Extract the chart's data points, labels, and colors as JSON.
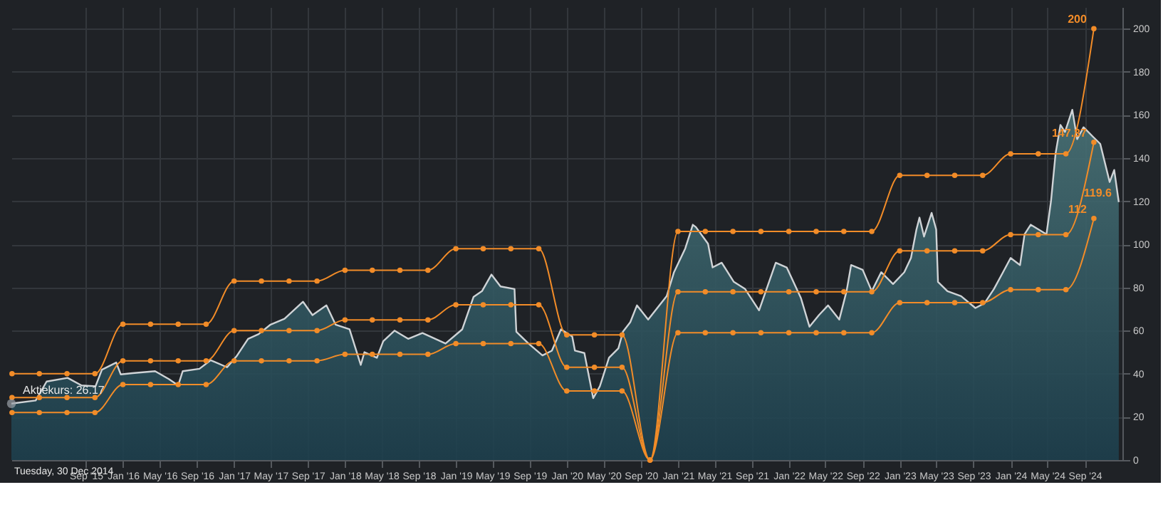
{
  "chart_data": {
    "type": "line",
    "xlim": [
      "2014-12-30",
      "2025-01-03"
    ],
    "xticks": [
      {
        "value": "2015-09-01",
        "label": "Sep '15"
      },
      {
        "value": "2016-01-01",
        "label": "Jan '16"
      },
      {
        "value": "2016-05-01",
        "label": "May '16"
      },
      {
        "value": "2016-09-01",
        "label": "Sep '16"
      },
      {
        "value": "2017-01-01",
        "label": "Jan '17"
      },
      {
        "value": "2017-05-01",
        "label": "May '17"
      },
      {
        "value": "2017-09-01",
        "label": "Sep '17"
      },
      {
        "value": "2018-01-01",
        "label": "Jan '18"
      },
      {
        "value": "2018-05-01",
        "label": "May '18"
      },
      {
        "value": "2018-09-01",
        "label": "Sep '18"
      },
      {
        "value": "2019-01-01",
        "label": "Jan '19"
      },
      {
        "value": "2019-05-01",
        "label": "May '19"
      },
      {
        "value": "2019-09-01",
        "label": "Sep '19"
      },
      {
        "value": "2020-01-01",
        "label": "Jan '20"
      },
      {
        "value": "2020-05-01",
        "label": "May '20"
      },
      {
        "value": "2020-09-01",
        "label": "Sep '20"
      },
      {
        "value": "2021-01-01",
        "label": "Jan '21"
      },
      {
        "value": "2021-05-01",
        "label": "May '21"
      },
      {
        "value": "2021-09-01",
        "label": "Sep '21"
      },
      {
        "value": "2022-01-01",
        "label": "Jan '22"
      },
      {
        "value": "2022-05-01",
        "label": "May '22"
      },
      {
        "value": "2022-09-01",
        "label": "Sep '22"
      },
      {
        "value": "2023-01-01",
        "label": "Jan '23"
      },
      {
        "value": "2023-05-01",
        "label": "May '23"
      },
      {
        "value": "2023-09-01",
        "label": "Sep '23"
      },
      {
        "value": "2024-01-01",
        "label": "Jan '24"
      },
      {
        "value": "2024-05-01",
        "label": "May '24"
      },
      {
        "value": "2024-09-01",
        "label": "Sep '24"
      }
    ],
    "ylim": [
      0,
      210
    ],
    "yticks": [
      0,
      20,
      40,
      60,
      80,
      100,
      120,
      140,
      160,
      180,
      200
    ],
    "grid": true,
    "series": [
      {
        "type": "area",
        "color": "#cfd3d6",
        "x": [
          "2014-12-30",
          "2015-03-20",
          "2015-04-25",
          "2015-07-03",
          "2015-08-18",
          "2015-10-03",
          "2015-10-24",
          "2015-12-10",
          "2015-12-25",
          "2016-02-02",
          "2016-04-16",
          "2016-06-01",
          "2016-07-01",
          "2016-07-16",
          "2016-09-09",
          "2016-10-16",
          "2016-12-09",
          "2017-01-09",
          "2017-02-16",
          "2017-03-23",
          "2017-05-01",
          "2017-06-16",
          "2017-08-16",
          "2017-09-16",
          "2017-11-01",
          "2017-12-01",
          "2018-01-16",
          "2018-02-22",
          "2018-03-06",
          "2018-04-16",
          "2018-05-07",
          "2018-06-13",
          "2018-07-28",
          "2018-09-13",
          "2018-11-28",
          "2019-01-22",
          "2019-02-28",
          "2019-03-28",
          "2019-04-28",
          "2019-05-28",
          "2019-07-13",
          "2019-07-19",
          "2019-08-28",
          "2019-10-13",
          "2019-11-13",
          "2019-12-13",
          "2020-01-19",
          "2020-01-28",
          "2020-02-28",
          "2020-03-28",
          "2020-04-19",
          "2020-05-19",
          "2020-06-19",
          "2020-07-04",
          "2020-07-28",
          "2020-08-19",
          "2020-09-25",
          "2020-10-19",
          "2020-11-25",
          "2020-12-19",
          "2021-01-25",
          "2021-02-19",
          "2021-03-01",
          "2021-04-10",
          "2021-04-25",
          "2021-05-25",
          "2021-07-04",
          "2021-08-10",
          "2021-09-25",
          "2021-11-19",
          "2021-12-25",
          "2022-02-10",
          "2022-03-10",
          "2022-04-10",
          "2022-05-10",
          "2022-06-16",
          "2022-07-10",
          "2022-07-25",
          "2022-09-01",
          "2022-10-01",
          "2022-11-01",
          "2022-12-10",
          "2023-01-16",
          "2023-02-07",
          "2023-02-25",
          "2023-03-07",
          "2023-03-22",
          "2023-04-16",
          "2023-05-01",
          "2023-05-07",
          "2023-06-07",
          "2023-07-22",
          "2023-09-07",
          "2023-10-07",
          "2023-11-07",
          "2023-12-07",
          "2024-01-01",
          "2024-02-01",
          "2024-02-16",
          "2024-03-07",
          "2024-04-28",
          "2024-05-13",
          "2024-05-28",
          "2024-06-13",
          "2024-06-28",
          "2024-07-22",
          "2024-08-07",
          "2024-08-28",
          "2024-09-28",
          "2024-10-22",
          "2024-11-22",
          "2024-12-07",
          "2024-12-22"
        ],
        "values": [
          26.17,
          27.6,
          36.4,
          38.1,
          34.6,
          34.2,
          41.9,
          45.2,
          39.7,
          40.3,
          41.2,
          37.5,
          34.6,
          41.2,
          42.3,
          46.3,
          43.0,
          48.1,
          56.2,
          58.4,
          62.8,
          65.5,
          73.4,
          67.2,
          71.7,
          62.8,
          60.6,
          44.1,
          50.0,
          47.4,
          55.1,
          60.0,
          56.2,
          58.9,
          54.0,
          60.6,
          75.6,
          78.3,
          86.0,
          80.5,
          79.3,
          59.5,
          54.0,
          48.5,
          50.7,
          60.6,
          57.3,
          50.7,
          49.6,
          28.7,
          34.2,
          47.4,
          51.8,
          59.5,
          63.9,
          71.7,
          65.1,
          69.4,
          76.0,
          87.1,
          98.1,
          109.1,
          108.0,
          100.3,
          89.3,
          91.5,
          82.6,
          79.3,
          69.4,
          91.5,
          89.3,
          75.0,
          61.8,
          67.2,
          71.7,
          65.1,
          78.3,
          90.4,
          88.2,
          78.3,
          87.1,
          81.6,
          87.1,
          93.7,
          106.9,
          112.4,
          103.6,
          114.6,
          106.9,
          82.6,
          78.3,
          76.0,
          70.5,
          72.7,
          79.3,
          87.1,
          93.7,
          90.4,
          104.7,
          109.1,
          104.7,
          120.1,
          142.1,
          155.4,
          152.1,
          162.4,
          148.8,
          154.3,
          149.9,
          146.6,
          128.9,
          134.5,
          119.6
        ]
      },
      {
        "color": "#f28c28",
        "marker": "circle",
        "x": [
          "2015-01-01",
          "2015-04-01",
          "2015-07-01",
          "2015-10-01",
          "2016-01-01",
          "2016-04-01",
          "2016-07-01",
          "2016-10-01",
          "2017-01-01",
          "2017-04-01",
          "2017-07-01",
          "2017-10-01",
          "2018-01-01",
          "2018-04-01",
          "2018-07-01",
          "2018-10-01",
          "2019-01-01",
          "2019-04-01",
          "2019-07-01",
          "2019-10-01",
          "2020-01-01",
          "2020-04-01",
          "2020-07-01",
          "2020-10-01",
          "2021-01-01",
          "2021-04-01",
          "2021-07-01",
          "2021-10-01",
          "2022-01-01",
          "2022-04-01",
          "2022-07-01",
          "2022-10-01",
          "2023-01-01",
          "2023-04-01",
          "2023-07-01",
          "2023-10-01",
          "2024-01-01",
          "2024-04-01",
          "2024-07-01",
          "2024-10-01"
        ],
        "values": [
          40,
          40,
          40,
          40,
          63,
          63,
          63,
          63,
          83,
          83,
          83,
          83,
          88,
          88,
          88,
          88,
          98,
          98,
          98,
          98,
          58,
          58,
          58,
          0,
          106,
          106,
          106,
          106,
          106,
          106,
          106,
          106,
          132,
          132,
          132,
          132,
          142,
          142,
          142,
          200
        ]
      },
      {
        "color": "#f28c28",
        "marker": "circle",
        "x": [
          "2015-01-01",
          "2015-04-01",
          "2015-07-01",
          "2015-10-01",
          "2016-01-01",
          "2016-04-01",
          "2016-07-01",
          "2016-10-01",
          "2017-01-01",
          "2017-04-01",
          "2017-07-01",
          "2017-10-01",
          "2018-01-01",
          "2018-04-01",
          "2018-07-01",
          "2018-10-01",
          "2019-01-01",
          "2019-04-01",
          "2019-07-01",
          "2019-10-01",
          "2020-01-01",
          "2020-04-01",
          "2020-07-01",
          "2020-10-01",
          "2021-01-01",
          "2021-04-01",
          "2021-07-01",
          "2021-10-01",
          "2022-01-01",
          "2022-04-01",
          "2022-07-01",
          "2022-10-01",
          "2023-01-01",
          "2023-04-01",
          "2023-07-01",
          "2023-10-01",
          "2024-01-01",
          "2024-04-01",
          "2024-07-01",
          "2024-10-01"
        ],
        "values": [
          29,
          29,
          29,
          29,
          46,
          46,
          46,
          46,
          60,
          60,
          60,
          60,
          65,
          65,
          65,
          65,
          72,
          72,
          72,
          72,
          43,
          43,
          43,
          0,
          78,
          78,
          78,
          78,
          78,
          78,
          78,
          78,
          97,
          97,
          97,
          97,
          104.5,
          104.5,
          104.5,
          147.37
        ]
      },
      {
        "color": "#f28c28",
        "marker": "circle",
        "x": [
          "2015-01-01",
          "2015-04-01",
          "2015-07-01",
          "2015-10-01",
          "2016-01-01",
          "2016-04-01",
          "2016-07-01",
          "2016-10-01",
          "2017-01-01",
          "2017-04-01",
          "2017-07-01",
          "2017-10-01",
          "2018-01-01",
          "2018-04-01",
          "2018-07-01",
          "2018-10-01",
          "2019-01-01",
          "2019-04-01",
          "2019-07-01",
          "2019-10-01",
          "2020-01-01",
          "2020-04-01",
          "2020-07-01",
          "2020-10-01",
          "2021-01-01",
          "2021-04-01",
          "2021-07-01",
          "2021-10-01",
          "2022-01-01",
          "2022-04-01",
          "2022-07-01",
          "2022-10-01",
          "2023-01-01",
          "2023-04-01",
          "2023-07-01",
          "2023-10-01",
          "2024-01-01",
          "2024-04-01",
          "2024-07-01",
          "2024-10-01"
        ],
        "values": [
          22,
          22,
          22,
          22,
          35,
          35,
          35,
          35,
          46,
          46,
          46,
          46,
          49,
          49,
          49,
          49,
          54,
          54,
          54,
          54,
          32,
          32,
          32,
          0,
          59,
          59,
          59,
          59,
          59,
          59,
          59,
          59,
          73,
          73,
          73,
          73,
          79,
          79,
          79,
          112
        ]
      }
    ],
    "annotations": [
      {
        "text": "200",
        "x": "2024-10-01",
        "y": 200
      },
      {
        "text": "147.37",
        "x": "2024-10-01",
        "y": 147.37
      },
      {
        "text": "119.6",
        "x": "2024-12-22",
        "y": 119.6
      },
      {
        "text": "112",
        "x": "2024-10-01",
        "y": 112
      },
      {
        "text": "Aktiekurs: 26.17",
        "x": "2014-12-30",
        "y": 26.17
      },
      "Tuesday, 30 Dec 2014"
    ]
  }
}
